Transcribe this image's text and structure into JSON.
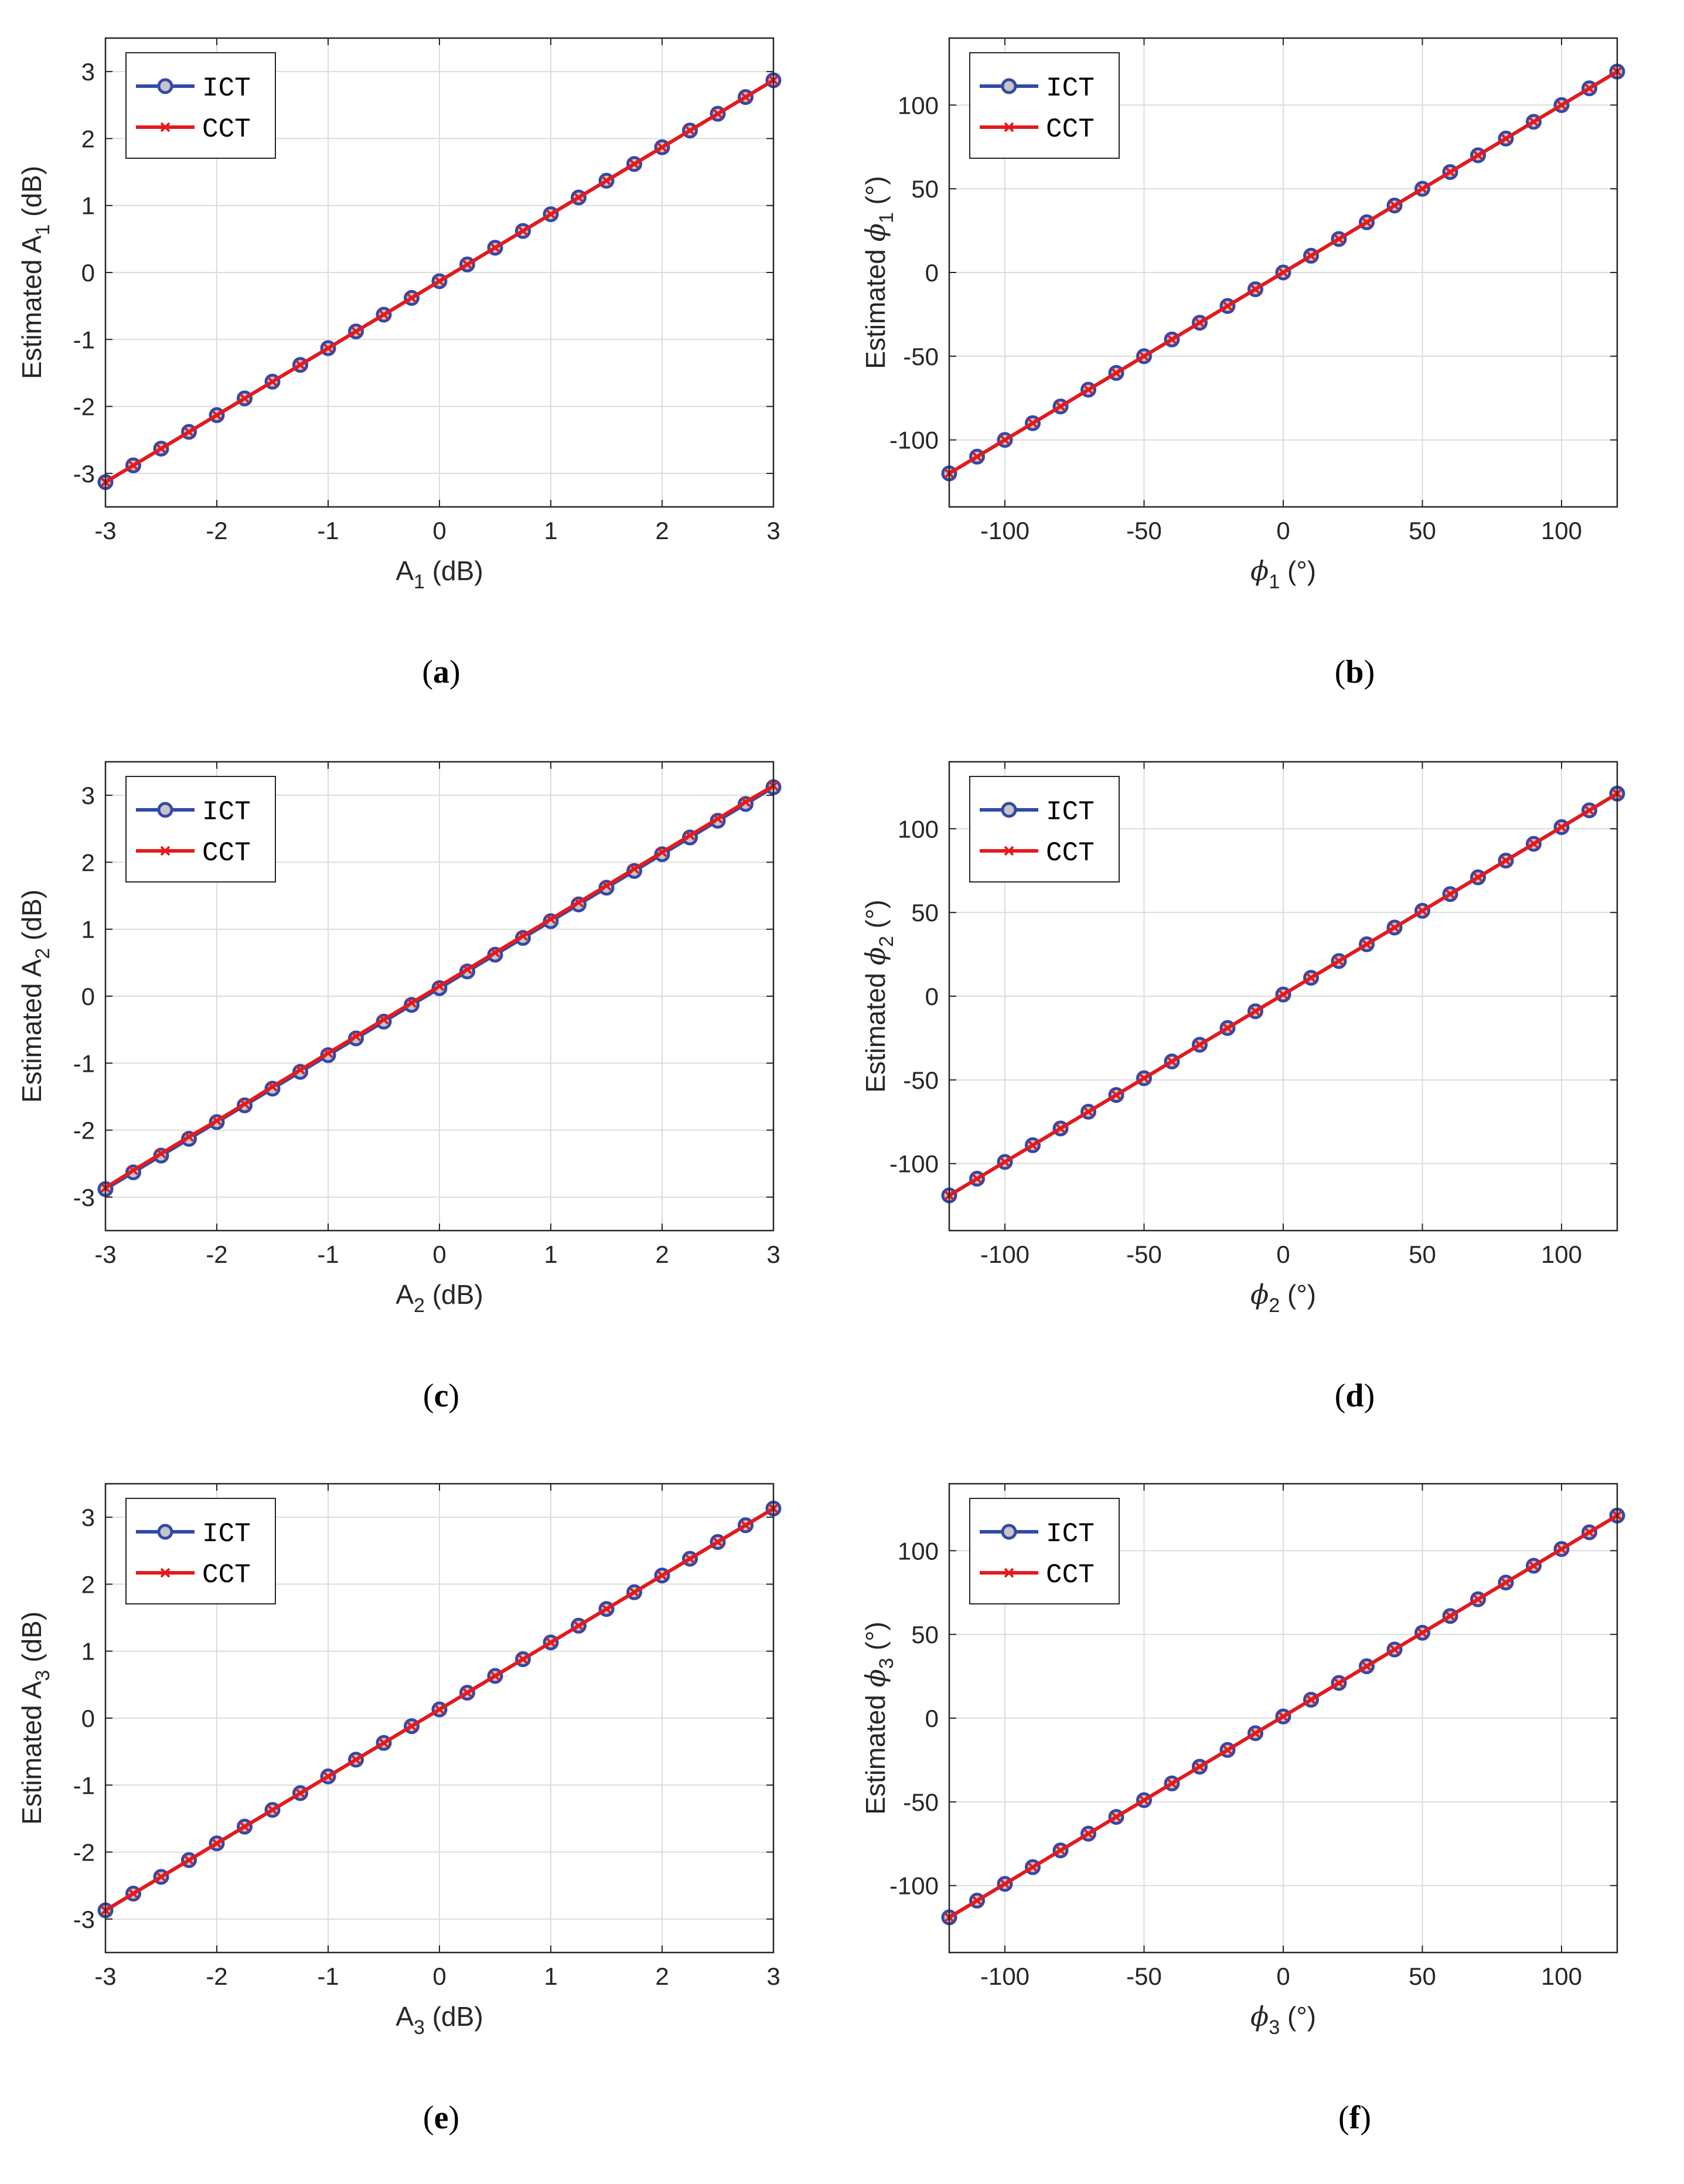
{
  "series_colors": {
    "ICT": "#3349a6",
    "CCT": "#e41a1c"
  },
  "legend": {
    "ict": "ICT",
    "cct": "CCT"
  },
  "chart_data": [
    {
      "id": "a",
      "type": "line",
      "caption": "a",
      "xlabel": "A",
      "xsub": "1",
      "xunit": " (dB)",
      "ylabel": "Estimated A",
      "ysub": "1",
      "yunit": " (dB)",
      "xlim": [
        -3,
        3
      ],
      "ylim": [
        -3.5,
        3.5
      ],
      "xticks": [
        -3,
        -2,
        -1,
        0,
        1,
        2,
        3
      ],
      "xticklabels": [
        "-3",
        "-2",
        "-1",
        "0",
        "1",
        "2",
        "3"
      ],
      "yticks": [
        -3,
        -2,
        -1,
        0,
        1,
        2,
        3
      ],
      "yticklabels": [
        "-3",
        "-2",
        "-1",
        "0",
        "1",
        "2",
        "3"
      ],
      "x": [
        -3,
        -2.75,
        -2.5,
        -2.25,
        -2,
        -1.75,
        -1.5,
        -1.25,
        -1,
        -0.75,
        -0.5,
        -0.25,
        0,
        0.25,
        0.5,
        0.75,
        1,
        1.25,
        1.5,
        1.75,
        2,
        2.25,
        2.5,
        2.75,
        3
      ],
      "series": [
        {
          "name": "ICT",
          "values": [
            -3.13,
            -2.88,
            -2.63,
            -2.38,
            -2.13,
            -1.88,
            -1.63,
            -1.38,
            -1.13,
            -0.88,
            -0.63,
            -0.38,
            -0.13,
            0.12,
            0.37,
            0.62,
            0.87,
            1.12,
            1.37,
            1.62,
            1.87,
            2.12,
            2.37,
            2.62,
            2.87
          ]
        },
        {
          "name": "CCT",
          "values": [
            -3.13,
            -2.88,
            -2.63,
            -2.38,
            -2.13,
            -1.88,
            -1.63,
            -1.38,
            -1.13,
            -0.88,
            -0.63,
            -0.38,
            -0.13,
            0.12,
            0.37,
            0.62,
            0.87,
            1.12,
            1.37,
            1.62,
            1.87,
            2.12,
            2.37,
            2.62,
            2.87
          ]
        }
      ],
      "grid": true,
      "legend_loc": "top-left"
    },
    {
      "id": "b",
      "type": "line",
      "caption": "b",
      "xlabel": "ϕ",
      "xsub": "1",
      "xunit": " (°)",
      "ylabel": "Estimated ϕ",
      "ysub": "1",
      "yunit": " (°)",
      "xlim": [
        -120,
        120
      ],
      "ylim": [
        -140,
        140
      ],
      "xticks": [
        -100,
        -50,
        0,
        50,
        100
      ],
      "xticklabels": [
        "-100",
        "-50",
        "0",
        "50",
        "100"
      ],
      "yticks": [
        -100,
        -50,
        0,
        50,
        100
      ],
      "yticklabels": [
        "-100",
        "-50",
        "0",
        "50",
        "100"
      ],
      "x": [
        -120,
        -110,
        -100,
        -90,
        -80,
        -70,
        -60,
        -50,
        -40,
        -30,
        -20,
        -10,
        0,
        10,
        20,
        30,
        40,
        50,
        60,
        70,
        80,
        90,
        100,
        110,
        120
      ],
      "series": [
        {
          "name": "ICT",
          "values": [
            -120,
            -110,
            -100,
            -90,
            -80,
            -70,
            -60,
            -50,
            -40,
            -30,
            -20,
            -10,
            0,
            10,
            20,
            30,
            40,
            50,
            60,
            70,
            80,
            90,
            100,
            110,
            120
          ]
        },
        {
          "name": "CCT",
          "values": [
            -120,
            -110,
            -100,
            -90,
            -80,
            -70,
            -60,
            -50,
            -40,
            -30,
            -20,
            -10,
            0,
            10,
            20,
            30,
            40,
            50,
            60,
            70,
            80,
            90,
            100,
            110,
            120
          ]
        }
      ],
      "grid": true,
      "legend_loc": "top-left"
    },
    {
      "id": "c",
      "type": "line",
      "caption": "c",
      "xlabel": "A",
      "xsub": "2",
      "xunit": " (dB)",
      "ylabel": "Estimated A",
      "ysub": "2",
      "yunit": " (dB)",
      "xlim": [
        -3,
        3
      ],
      "ylim": [
        -3.5,
        3.5
      ],
      "xticks": [
        -3,
        -2,
        -1,
        0,
        1,
        2,
        3
      ],
      "xticklabels": [
        "-3",
        "-2",
        "-1",
        "0",
        "1",
        "2",
        "3"
      ],
      "yticks": [
        -3,
        -2,
        -1,
        0,
        1,
        2,
        3
      ],
      "yticklabels": [
        "-3",
        "-2",
        "-1",
        "0",
        "1",
        "2",
        "3"
      ],
      "x": [
        -3,
        -2.75,
        -2.5,
        -2.25,
        -2,
        -1.75,
        -1.5,
        -1.25,
        -1,
        -0.75,
        -0.5,
        -0.25,
        0,
        0.25,
        0.5,
        0.75,
        1,
        1.25,
        1.5,
        1.75,
        2,
        2.25,
        2.5,
        2.75,
        3
      ],
      "series": [
        {
          "name": "ICT",
          "values": [
            -2.88,
            -2.63,
            -2.38,
            -2.13,
            -1.88,
            -1.63,
            -1.38,
            -1.13,
            -0.88,
            -0.63,
            -0.38,
            -0.13,
            0.12,
            0.37,
            0.62,
            0.87,
            1.12,
            1.37,
            1.62,
            1.87,
            2.12,
            2.37,
            2.62,
            2.87,
            3.12
          ]
        },
        {
          "name": "CCT",
          "values": [
            -2.86,
            -2.6,
            -2.35,
            -2.1,
            -1.86,
            -1.61,
            -1.35,
            -1.1,
            -0.85,
            -0.6,
            -0.35,
            -0.1,
            0.15,
            0.4,
            0.65,
            0.9,
            1.15,
            1.4,
            1.65,
            1.9,
            2.15,
            2.4,
            2.65,
            2.9,
            3.14
          ]
        }
      ],
      "grid": true,
      "legend_loc": "top-left"
    },
    {
      "id": "d",
      "type": "line",
      "caption": "d",
      "xlabel": "ϕ",
      "xsub": "2",
      "xunit": " (°)",
      "ylabel": "Estimated ϕ",
      "ysub": "2",
      "yunit": " (°)",
      "xlim": [
        -120,
        120
      ],
      "ylim": [
        -140,
        140
      ],
      "xticks": [
        -100,
        -50,
        0,
        50,
        100
      ],
      "xticklabels": [
        "-100",
        "-50",
        "0",
        "50",
        "100"
      ],
      "yticks": [
        -100,
        -50,
        0,
        50,
        100
      ],
      "yticklabels": [
        "-100",
        "-50",
        "0",
        "50",
        "100"
      ],
      "x": [
        -120,
        -110,
        -100,
        -90,
        -80,
        -70,
        -60,
        -50,
        -40,
        -30,
        -20,
        -10,
        0,
        10,
        20,
        30,
        40,
        50,
        60,
        70,
        80,
        90,
        100,
        110,
        120
      ],
      "series": [
        {
          "name": "ICT",
          "values": [
            -119,
            -109,
            -99,
            -89,
            -79,
            -69,
            -59,
            -49,
            -39,
            -29,
            -19,
            -9,
            1,
            11,
            21,
            31,
            41,
            51,
            61,
            71,
            81,
            91,
            101,
            111,
            121
          ]
        },
        {
          "name": "CCT",
          "values": [
            -119,
            -109,
            -99,
            -89,
            -79,
            -69,
            -59,
            -49,
            -39,
            -29,
            -19,
            -9,
            1,
            11,
            21,
            31,
            41,
            51,
            61,
            71,
            81,
            91,
            101,
            111,
            121
          ]
        }
      ],
      "grid": true,
      "legend_loc": "top-left"
    },
    {
      "id": "e",
      "type": "line",
      "caption": "e",
      "xlabel": "A",
      "xsub": "3",
      "xunit": " (dB)",
      "ylabel": "Estimated A",
      "ysub": "3",
      "yunit": " (dB)",
      "xlim": [
        -3,
        3
      ],
      "ylim": [
        -3.5,
        3.5
      ],
      "xticks": [
        -3,
        -2,
        -1,
        0,
        1,
        2,
        3
      ],
      "xticklabels": [
        "-3",
        "-2",
        "-1",
        "0",
        "1",
        "2",
        "3"
      ],
      "yticks": [
        -3,
        -2,
        -1,
        0,
        1,
        2,
        3
      ],
      "yticklabels": [
        "-3",
        "-2",
        "-1",
        "0",
        "1",
        "2",
        "3"
      ],
      "x": [
        -3,
        -2.75,
        -2.5,
        -2.25,
        -2,
        -1.75,
        -1.5,
        -1.25,
        -1,
        -0.75,
        -0.5,
        -0.25,
        0,
        0.25,
        0.5,
        0.75,
        1,
        1.25,
        1.5,
        1.75,
        2,
        2.25,
        2.5,
        2.75,
        3
      ],
      "series": [
        {
          "name": "ICT",
          "values": [
            -2.87,
            -2.62,
            -2.37,
            -2.12,
            -1.87,
            -1.62,
            -1.37,
            -1.12,
            -0.87,
            -0.62,
            -0.37,
            -0.12,
            0.13,
            0.38,
            0.63,
            0.88,
            1.13,
            1.38,
            1.63,
            1.88,
            2.13,
            2.38,
            2.63,
            2.88,
            3.13
          ]
        },
        {
          "name": "CCT",
          "values": [
            -2.87,
            -2.62,
            -2.37,
            -2.12,
            -1.87,
            -1.62,
            -1.37,
            -1.12,
            -0.87,
            -0.62,
            -0.37,
            -0.12,
            0.13,
            0.38,
            0.63,
            0.88,
            1.13,
            1.38,
            1.63,
            1.88,
            2.13,
            2.38,
            2.63,
            2.88,
            3.13
          ]
        }
      ],
      "grid": true,
      "legend_loc": "top-left"
    },
    {
      "id": "f",
      "type": "line",
      "caption": "f",
      "xlabel": "ϕ",
      "xsub": "3",
      "xunit": " (°)",
      "ylabel": "Estimated ϕ",
      "ysub": "3",
      "yunit": " (°)",
      "xlim": [
        -120,
        120
      ],
      "ylim": [
        -140,
        140
      ],
      "xticks": [
        -100,
        -50,
        0,
        50,
        100
      ],
      "xticklabels": [
        "-100",
        "-50",
        "0",
        "50",
        "100"
      ],
      "yticks": [
        -100,
        -50,
        0,
        50,
        100
      ],
      "yticklabels": [
        "-100",
        "-50",
        "0",
        "50",
        "100"
      ],
      "x": [
        -120,
        -110,
        -100,
        -90,
        -80,
        -70,
        -60,
        -50,
        -40,
        -30,
        -20,
        -10,
        0,
        10,
        20,
        30,
        40,
        50,
        60,
        70,
        80,
        90,
        100,
        110,
        120
      ],
      "series": [
        {
          "name": "ICT",
          "values": [
            -119,
            -109,
            -99,
            -89,
            -79,
            -69,
            -59,
            -49,
            -39,
            -29,
            -19,
            -9,
            1,
            11,
            21,
            31,
            41,
            51,
            61,
            71,
            81,
            91,
            101,
            111,
            121
          ]
        },
        {
          "name": "CCT",
          "values": [
            -119,
            -109,
            -99,
            -89,
            -79,
            -69,
            -59,
            -49,
            -39,
            -29,
            -19,
            -9,
            1,
            11,
            21,
            31,
            41,
            51,
            61,
            71,
            81,
            91,
            101,
            111,
            121
          ]
        }
      ],
      "grid": true,
      "legend_loc": "top-left"
    }
  ]
}
